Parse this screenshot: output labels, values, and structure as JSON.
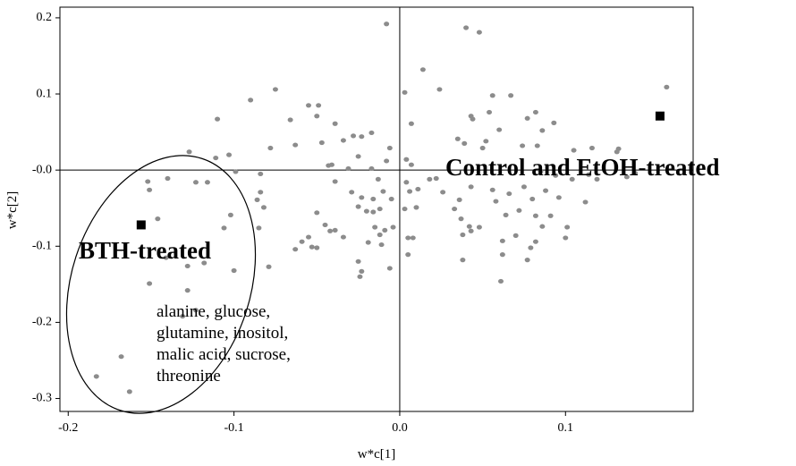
{
  "chart_data": {
    "type": "scatter",
    "xlabel": "w*c[1]",
    "ylabel": "w*c[2]",
    "xlim": [
      -0.205,
      0.177
    ],
    "ylim": [
      -0.317,
      0.214
    ],
    "xticks": [
      -0.2,
      -0.1,
      {
        "value": 0,
        "label": "0.0"
      },
      0.1
    ],
    "yticks": [
      -0.3,
      -0.2,
      {
        "value": 0,
        "label": "-0.0"
      },
      -0.1,
      0.1,
      0.2
    ],
    "zero_lines": true,
    "annotations": [
      "Control and EtOH-treated",
      "BTH-treated",
      "alanine, glucose,",
      "glutamine, inositol,",
      "malic acid, sucrose,",
      "threonine"
    ],
    "series": [
      {
        "color": "#8c8c8c",
        "marker": "circle",
        "x": [
          -0.008,
          0.04,
          0.048,
          0.014,
          0.161,
          0.024,
          0.003,
          -0.09,
          -0.075,
          -0.11,
          -0.055,
          -0.049,
          -0.066,
          -0.05,
          -0.039,
          0.007,
          0.056,
          0.067,
          0.054,
          0.043,
          0.044,
          0.082,
          0.093,
          0.077,
          0.06,
          -0.017,
          -0.028,
          -0.034,
          -0.023,
          0.035,
          0.039,
          0.052,
          0.05,
          0.074,
          0.083,
          0.086,
          0.105,
          0.116,
          0.132,
          0.131,
          -0.078,
          -0.063,
          -0.047,
          -0.103,
          -0.127,
          -0.14,
          -0.123,
          -0.116,
          -0.152,
          -0.151,
          -0.146,
          -0.111,
          -0.084,
          -0.099,
          -0.084,
          -0.086,
          -0.082,
          -0.085,
          -0.079,
          -0.1,
          -0.118,
          -0.128,
          -0.151,
          -0.102,
          -0.106,
          -0.059,
          -0.055,
          -0.053,
          -0.05,
          -0.063,
          -0.045,
          -0.05,
          -0.039,
          -0.042,
          -0.034,
          -0.025,
          -0.023,
          -0.024,
          -0.019,
          -0.015,
          -0.012,
          -0.011,
          -0.009,
          -0.004,
          -0.006,
          -0.016,
          -0.02,
          -0.025,
          -0.023,
          -0.029,
          -0.039,
          -0.043,
          -0.041,
          -0.031,
          -0.025,
          -0.017,
          -0.006,
          -0.008,
          -0.013,
          -0.01,
          -0.016,
          -0.005,
          -0.012,
          0.004,
          0.006,
          0.011,
          0.003,
          0.01,
          0.005,
          0.008,
          0.005,
          0.004,
          0.007,
          0.018,
          0.022,
          0.026,
          0.033,
          0.037,
          0.042,
          0.038,
          0.043,
          0.048,
          0.038,
          0.062,
          0.064,
          0.07,
          0.072,
          0.058,
          0.056,
          0.043,
          0.036,
          0.061,
          0.062,
          0.077,
          0.079,
          0.082,
          0.082,
          0.086,
          0.091,
          0.101,
          0.1,
          0.112,
          0.096,
          0.088,
          0.075,
          0.066,
          0.08,
          0.104,
          0.119,
          0.142,
          0.137,
          0.114,
          0.094,
          0.085,
          -0.183,
          -0.168,
          -0.163,
          -0.141,
          -0.123,
          -0.131,
          -0.128
        ],
        "values": [
          0.192,
          0.187,
          0.181,
          0.132,
          0.109,
          0.106,
          0.102,
          0.092,
          0.106,
          0.067,
          0.085,
          0.085,
          0.066,
          0.071,
          0.061,
          0.061,
          0.098,
          0.098,
          0.076,
          0.071,
          0.067,
          0.076,
          0.062,
          0.068,
          0.053,
          0.049,
          0.045,
          0.039,
          0.044,
          0.041,
          0.035,
          0.038,
          0.029,
          0.032,
          0.032,
          0.052,
          0.026,
          0.029,
          0.028,
          0.024,
          0.029,
          0.033,
          0.036,
          0.02,
          0.024,
          -0.011,
          -0.016,
          -0.016,
          -0.015,
          -0.026,
          -0.064,
          0.016,
          -0.005,
          -0.002,
          -0.029,
          -0.039,
          -0.049,
          -0.076,
          -0.127,
          -0.132,
          -0.122,
          -0.126,
          -0.149,
          -0.059,
          -0.076,
          -0.094,
          -0.088,
          -0.101,
          -0.102,
          -0.104,
          -0.072,
          -0.056,
          -0.079,
          -0.08,
          -0.088,
          -0.12,
          -0.133,
          -0.14,
          -0.095,
          -0.075,
          -0.085,
          -0.098,
          -0.079,
          -0.075,
          -0.129,
          -0.055,
          -0.054,
          -0.048,
          -0.036,
          -0.029,
          -0.015,
          0.006,
          0.007,
          0.002,
          0.018,
          0.002,
          0.029,
          0.012,
          -0.012,
          -0.028,
          -0.038,
          -0.038,
          -0.051,
          -0.016,
          -0.028,
          -0.025,
          -0.051,
          -0.049,
          -0.089,
          -0.089,
          -0.111,
          0.014,
          0.007,
          -0.012,
          -0.011,
          -0.029,
          -0.051,
          -0.064,
          -0.074,
          -0.085,
          -0.08,
          -0.075,
          -0.118,
          -0.093,
          -0.059,
          -0.086,
          -0.053,
          -0.041,
          -0.026,
          -0.022,
          -0.039,
          -0.146,
          -0.111,
          -0.118,
          -0.102,
          -0.094,
          -0.06,
          -0.074,
          -0.06,
          -0.075,
          -0.089,
          -0.042,
          -0.036,
          -0.027,
          -0.022,
          -0.031,
          -0.038,
          -0.012,
          -0.012,
          -0.004,
          -0.009,
          -0.006,
          -0.007,
          -0.002,
          -0.271,
          -0.245,
          -0.291,
          -0.115,
          -0.184,
          -0.192,
          -0.158
        ]
      },
      {
        "color": "#000000",
        "marker": "square",
        "x": [
          -0.156,
          0.157
        ],
        "values": [
          -0.072,
          0.071
        ]
      }
    ]
  }
}
